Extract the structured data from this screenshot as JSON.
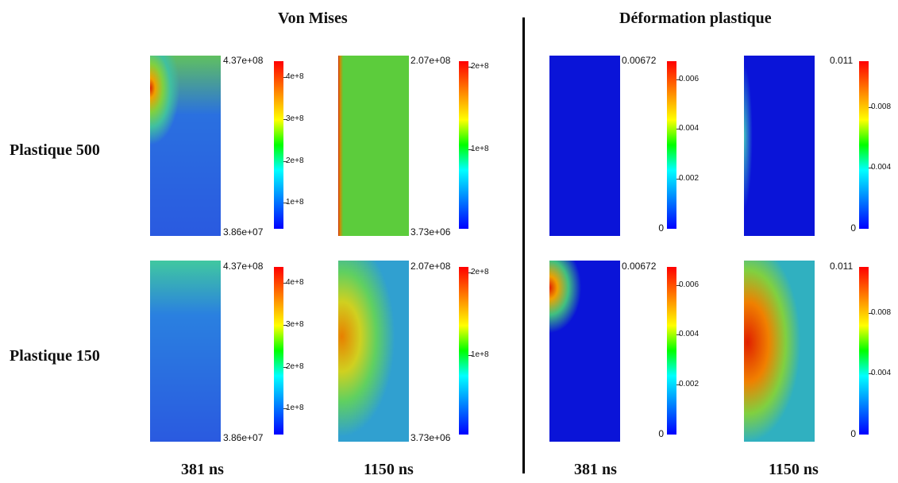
{
  "headers": [
    "Von Mises",
    "Déformation plastique"
  ],
  "rows": [
    {
      "label": "Plastique 500",
      "cells": [
        {
          "max": "4.37e+08",
          "min": "3.86e+07",
          "ticks": [
            "1e+8",
            "2e+8",
            "3e+8",
            "4e+8"
          ]
        },
        {
          "max": "2.07e+08",
          "min": "3.73e+06",
          "ticks": [
            "1e+8",
            "2e+8"
          ]
        },
        {
          "max": "0.00672",
          "min": "0",
          "ticks": [
            "0.002",
            "0.004",
            "0.006"
          ]
        },
        {
          "max": "0.011",
          "min": "0",
          "ticks": [
            "0.004",
            "0.008"
          ]
        }
      ]
    },
    {
      "label": "Plastique 150",
      "cells": [
        {
          "max": "4.37e+08",
          "min": "3.86e+07",
          "ticks": [
            "1e+8",
            "2e+8",
            "3e+8",
            "4e+8"
          ]
        },
        {
          "max": "2.07e+08",
          "min": "3.73e+06",
          "ticks": [
            "1e+8",
            "2e+8"
          ]
        },
        {
          "max": "0.00672",
          "min": "0",
          "ticks": [
            "0.002",
            "0.004",
            "0.006"
          ]
        },
        {
          "max": "0.011",
          "min": "0",
          "ticks": [
            "0.004",
            "0.008"
          ]
        }
      ]
    }
  ],
  "columns": [
    "381 ns",
    "1150 ns",
    "381 ns",
    "1150 ns"
  ]
}
